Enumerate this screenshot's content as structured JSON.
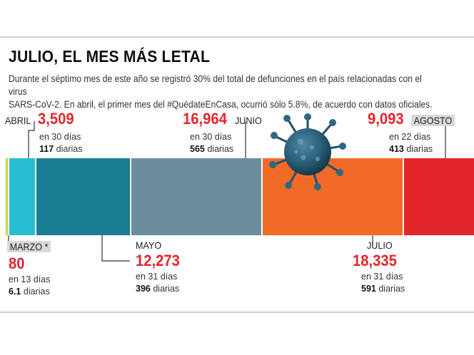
{
  "header": {
    "title": "JULIO, EL MES MÁS LETAL",
    "intro_line1": "Durante el séptimo mes de este año se registró 30% del total de defunciones en el país relacionadas con el virus",
    "intro_line2": "SARS-CoV-2. En abril, el primer mes del #QuédateEnCasa, ocurrió sólo 5.8%, de acuerdo con datos oficiales."
  },
  "chart_data": {
    "type": "bar",
    "orientation": "stacked-horizontal",
    "categories": [
      "MARZO *",
      "ABRIL",
      "MAYO",
      "JUNIO",
      "JULIO",
      "AGOSTO"
    ],
    "values": [
      80,
      3509,
      12273,
      16964,
      18335,
      9093
    ],
    "days": [
      13,
      30,
      31,
      30,
      31,
      22
    ],
    "daily": [
      6.1,
      117,
      396,
      565,
      591,
      413
    ],
    "colors": [
      "#c6d93a",
      "#27bfd1",
      "#177f91",
      "#6c8e9a",
      "#f26a27",
      "#e3262b"
    ]
  },
  "labels": {
    "marzo": {
      "month": "MARZO *",
      "value": "80",
      "days": "en 13 días",
      "daily_num": "6.1",
      "daily_word": "diarias"
    },
    "abril": {
      "month": "ABRIL",
      "value": "3,509",
      "days": "en 30 días",
      "daily_num": "117",
      "daily_word": "diarias"
    },
    "mayo": {
      "month": "MAYO",
      "value": "12,273",
      "days": "en 31 días",
      "daily_num": "396",
      "daily_word": "diarias"
    },
    "junio": {
      "month": "JUNIO",
      "value": "16,964",
      "days": "en 30 días",
      "daily_num": "565",
      "daily_word": "diarias"
    },
    "julio": {
      "month": "JULIO",
      "value": "18,335",
      "days": "en 31 días",
      "daily_num": "591",
      "daily_word": "diarias"
    },
    "agosto": {
      "month": "AGOSTO",
      "value": "9,093",
      "days": "en 22 días",
      "daily_num": "413",
      "daily_word": "diarias"
    }
  },
  "icons": {
    "virus": "coronavirus-icon"
  }
}
